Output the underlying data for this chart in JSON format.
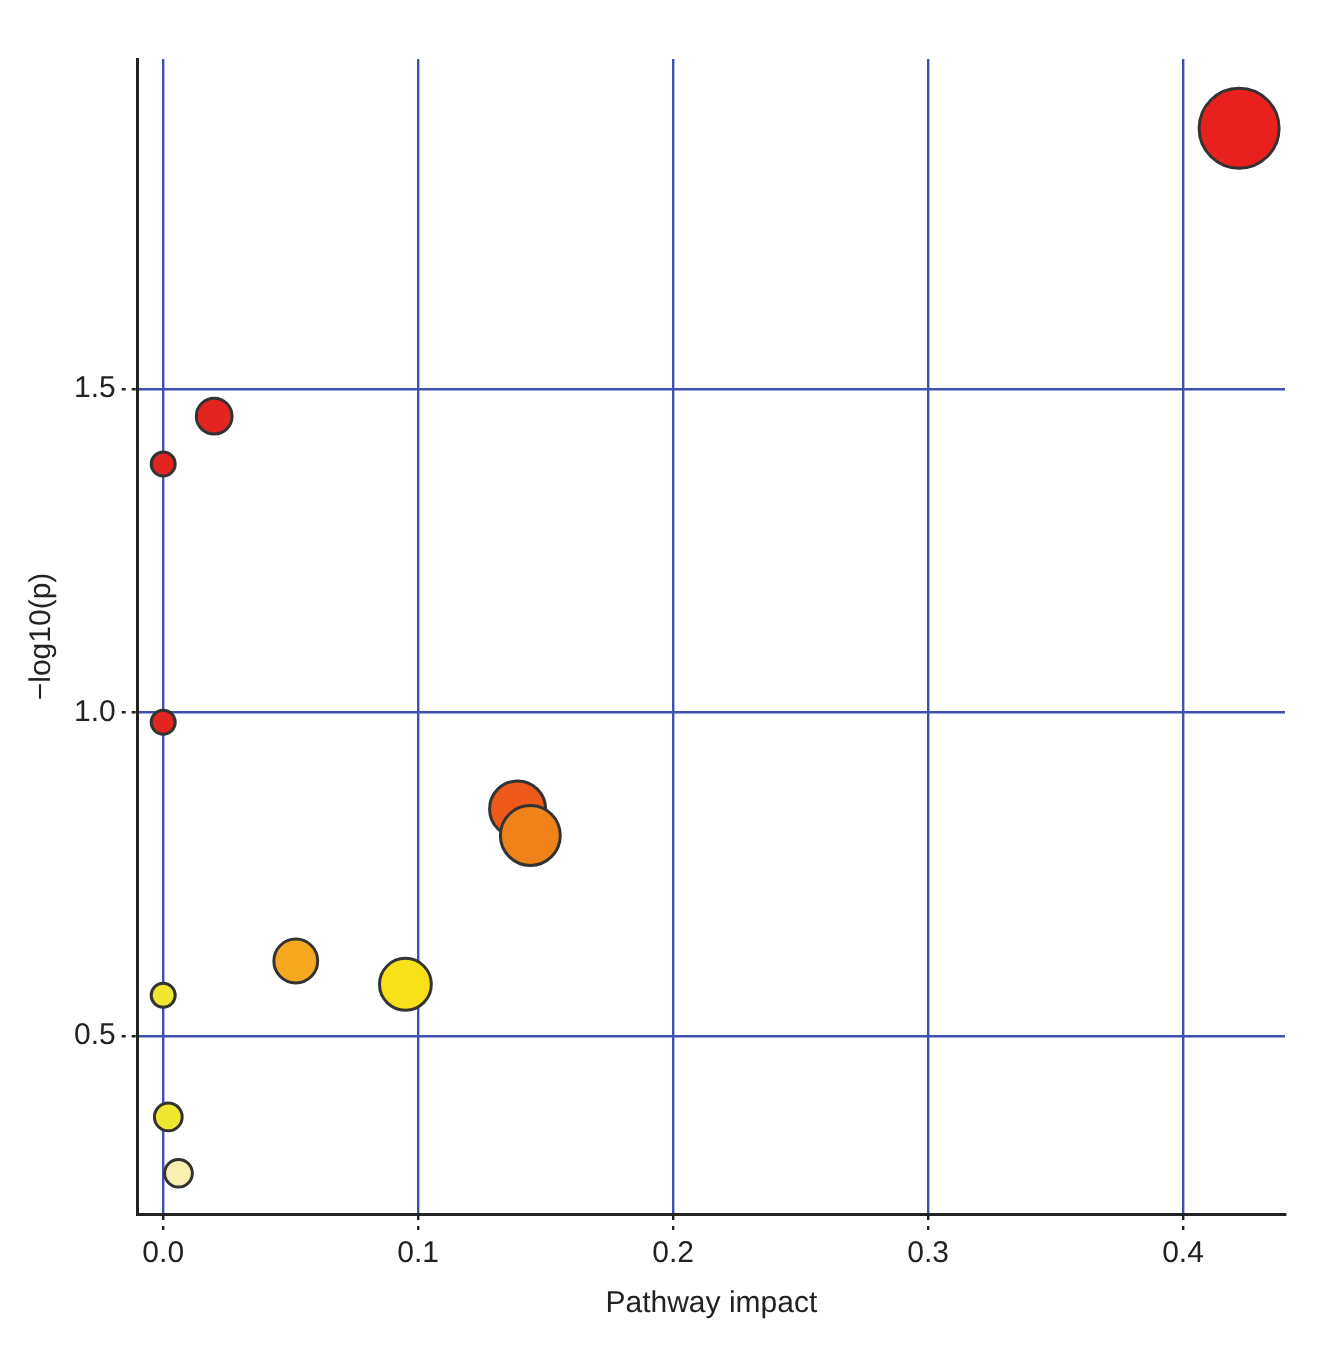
{
  "chart_data": {
    "type": "bubble",
    "xlabel": "Pathway impact",
    "ylabel": "−log10(p)",
    "x": [
      0.422,
      0.02,
      0,
      0,
      0.139,
      0.144,
      0.052,
      0.095,
      0,
      0.002,
      0.006
    ],
    "values": [
      1.903,
      1.458,
      1.384,
      0.985,
      0.851,
      0.81,
      0.616,
      0.58,
      0.563,
      0.375,
      0.288
    ],
    "sizes": [
      1,
      0.2,
      0.09,
      0.09,
      0.49,
      0.56,
      0.3,
      0.42,
      0.09,
      0.12,
      0.12
    ],
    "colors": [
      "#e8201e",
      "#e42420",
      "#e42420",
      "#e42420",
      "#ee5a1a",
      "#f0821a",
      "#f5a81f",
      "#f8e01a",
      "#f0e830",
      "#f0e830",
      "#f8f0b0"
    ],
    "xlim": [
      -0.01,
      0.44
    ],
    "ylim": [
      0.225,
      2.01
    ],
    "xticks": [
      {
        "value": 0,
        "label": "0.0"
      },
      0.1,
      0.2,
      0.3,
      0.4
    ],
    "yticks": [
      0.5,
      {
        "value": 1,
        "label": "1.0"
      },
      1.5
    ],
    "grid": true,
    "legend": false
  }
}
